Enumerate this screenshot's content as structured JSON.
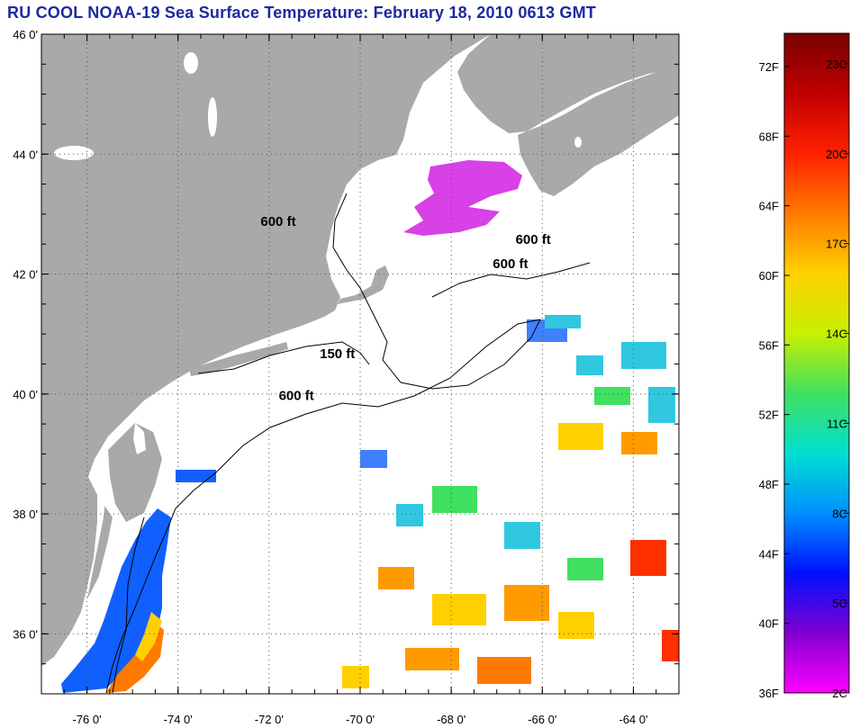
{
  "title": "RU COOL  NOAA-19  Sea Surface Temperature:  February 18, 2010 0613 GMT",
  "map": {
    "lon_range": [
      -77,
      -63
    ],
    "lat_range": [
      35,
      46
    ],
    "lat_ticks": [
      {
        "value": 46,
        "label": "46 0'"
      },
      {
        "value": 44,
        "label": "44 0'"
      },
      {
        "value": 42,
        "label": "42 0'"
      },
      {
        "value": 40,
        "label": "40 0'"
      },
      {
        "value": 38,
        "label": "38 0'"
      },
      {
        "value": 36,
        "label": "36 0'"
      }
    ],
    "lon_ticks": [
      {
        "value": -76,
        "label": "-76 0'"
      },
      {
        "value": -74,
        "label": "-74 0'"
      },
      {
        "value": -72,
        "label": "-72 0'"
      },
      {
        "value": -70,
        "label": "-70 0'"
      },
      {
        "value": -68,
        "label": "-68 0'"
      },
      {
        "value": -66,
        "label": "-66 0'"
      },
      {
        "value": -64,
        "label": "-64 0'"
      }
    ],
    "contour_labels": [
      {
        "text": "600 ft",
        "lon": -71.8,
        "lat": 42.8
      },
      {
        "text": "600 ft",
        "lon": -66.2,
        "lat": 42.5
      },
      {
        "text": "600 ft",
        "lon": -66.7,
        "lat": 42.1
      },
      {
        "text": "150 ft",
        "lon": -70.5,
        "lat": 40.6
      },
      {
        "text": "600 ft",
        "lon": -71.4,
        "lat": 39.9
      }
    ],
    "colors": {
      "land": "#a9a9a9",
      "water": "#ffffff",
      "grid": "#555555"
    }
  },
  "colorbar": {
    "fahrenheit_labels": [
      "72F",
      "68F",
      "64F",
      "60F",
      "56F",
      "52F",
      "48F",
      "44F",
      "40F",
      "36F"
    ],
    "celsius_labels": [
      "23C",
      "20C",
      "17C",
      "14C",
      "11C",
      "8C",
      "5C",
      "2C"
    ],
    "gradient_colors": [
      "#7a0000",
      "#c00000",
      "#ff2000",
      "#ff7a00",
      "#ffd000",
      "#c8f000",
      "#40e060",
      "#00e0d0",
      "#0090ff",
      "#0010ff",
      "#8000d0",
      "#ff00ff"
    ]
  }
}
